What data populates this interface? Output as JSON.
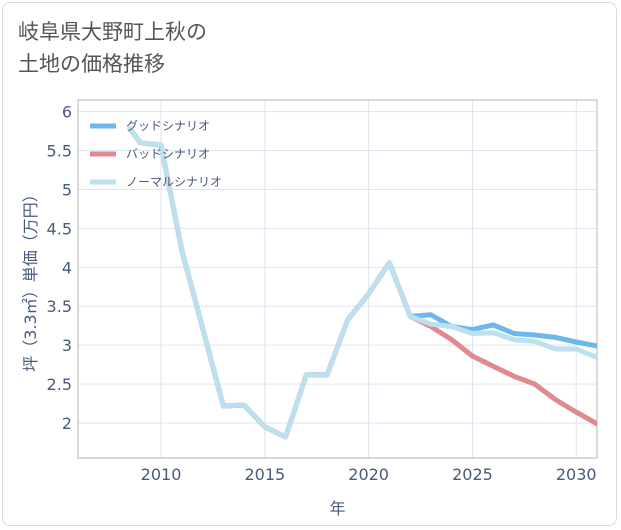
{
  "title": "岐阜県大野町上秋の\n土地の価格推移",
  "chart_data": {
    "type": "line",
    "xlabel": "年",
    "ylabel": "坪（3.3㎡）単価（万円）",
    "xlim": [
      2006,
      2031
    ],
    "ylim": [
      1.55,
      6.15
    ],
    "xticks": [
      2010,
      2015,
      2020,
      2025,
      2030
    ],
    "yticks": [
      2,
      2.5,
      3,
      3.5,
      4,
      4.5,
      5,
      5.5,
      6
    ],
    "ytick_labels": [
      "2",
      "2.5",
      "3",
      "3.5",
      "4",
      "4.5",
      "5",
      "5.5",
      "6"
    ],
    "grid": true,
    "legend_position": "top-left",
    "series": [
      {
        "name": "グッドシナリオ",
        "color": "#6cb8ec",
        "x": [
          2008.5,
          2009,
          2010,
          2011,
          2012,
          2013,
          2014,
          2015,
          2016,
          2017,
          2018,
          2019,
          2020,
          2021,
          2022,
          2023,
          2024,
          2025,
          2026,
          2027,
          2028,
          2029,
          2030,
          2031
        ],
        "values": [
          5.78,
          5.6,
          5.57,
          4.22,
          3.22,
          2.22,
          2.23,
          1.95,
          1.82,
          2.62,
          2.62,
          3.33,
          3.66,
          4.06,
          3.37,
          3.39,
          3.24,
          3.2,
          3.26,
          3.15,
          3.13,
          3.1,
          3.04,
          2.99
        ]
      },
      {
        "name": "バッドシナリオ",
        "color": "#de8a8f",
        "x": [
          2008.5,
          2009,
          2010,
          2011,
          2012,
          2013,
          2014,
          2015,
          2016,
          2017,
          2018,
          2019,
          2020,
          2021,
          2022,
          2023,
          2024,
          2025,
          2026,
          2027,
          2028,
          2029,
          2030,
          2031
        ],
        "values": [
          5.78,
          5.6,
          5.57,
          4.22,
          3.22,
          2.22,
          2.23,
          1.95,
          1.82,
          2.62,
          2.62,
          3.33,
          3.66,
          4.06,
          3.37,
          3.24,
          3.07,
          2.86,
          2.73,
          2.6,
          2.5,
          2.3,
          2.14,
          1.99
        ]
      },
      {
        "name": "ノーマルシナリオ",
        "color": "#bde0ee",
        "x": [
          2008.5,
          2009,
          2010,
          2011,
          2012,
          2013,
          2014,
          2015,
          2016,
          2017,
          2018,
          2019,
          2020,
          2021,
          2022,
          2023,
          2024,
          2025,
          2026,
          2027,
          2028,
          2029,
          2030,
          2031
        ],
        "values": [
          5.78,
          5.6,
          5.57,
          4.22,
          3.22,
          2.22,
          2.23,
          1.95,
          1.82,
          2.62,
          2.62,
          3.33,
          3.66,
          4.06,
          3.37,
          3.27,
          3.24,
          3.15,
          3.16,
          3.07,
          3.05,
          2.95,
          2.95,
          2.84
        ]
      }
    ]
  }
}
